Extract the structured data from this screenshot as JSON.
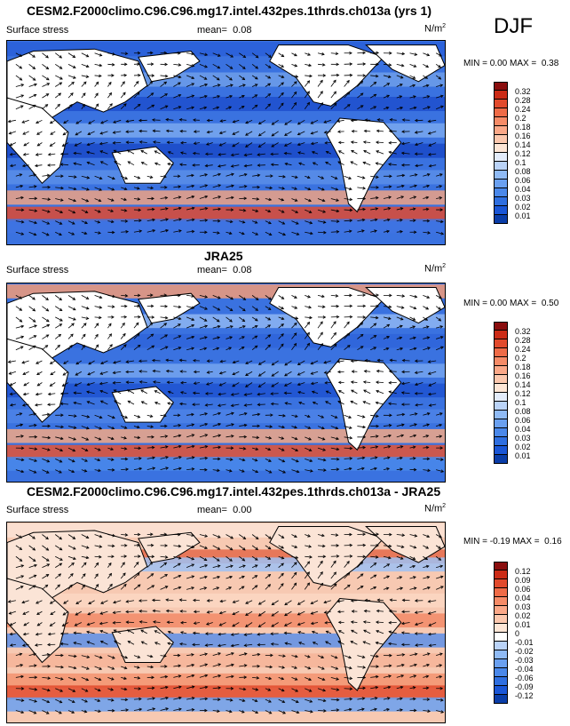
{
  "season": "DJF",
  "colors": {
    "model_scale": [
      "#08306b",
      "#0a3da8",
      "#1a56d6",
      "#2f6fe0",
      "#4a88ea",
      "#6aa0f0",
      "#8fbaf5",
      "#bad3f8",
      "#e3ecfb",
      "#fde6d6",
      "#fcc8ae",
      "#fba888",
      "#f68b67",
      "#ef6b47",
      "#e24a2c",
      "#cc2b16",
      "#8a0e0e"
    ],
    "diff_scale": [
      "#08306b",
      "#0a3da8",
      "#1a56d6",
      "#2f6fe0",
      "#4a88ea",
      "#6aa0f0",
      "#8fbaf5",
      "#bad3f8",
      "#ffffff",
      "#fde6d6",
      "#fcc8ae",
      "#fba888",
      "#f68b67",
      "#ef6b47",
      "#e24a2c",
      "#cc2b16",
      "#8a0e0e"
    ],
    "land": "#ffffff",
    "coast": "#000000"
  },
  "panels": [
    {
      "title": "CESM2.F2000climo.C96.C96.mg17.intel.432pes.1thrds.ch013a (yrs 1)",
      "left": "Surface stress",
      "mean_label": "mean=",
      "mean": "0.08",
      "units": "N/m",
      "units_sup": "2",
      "min_label": "MIN =",
      "min": "0.00",
      "max_label": "MAX =",
      "max": "0.38",
      "cb_labels": [
        "0.32",
        "0.28",
        "0.24",
        "0.2",
        "0.18",
        "0.16",
        "0.14",
        "0.12",
        "0.1",
        "0.08",
        "0.06",
        "0.04",
        "0.03",
        "0.02",
        "0.01"
      ]
    },
    {
      "title": "JRA25",
      "left": "Surface stress",
      "mean_label": "mean=",
      "mean": "0.08",
      "units": "N/m",
      "units_sup": "2",
      "min_label": "MIN =",
      "min": "0.00",
      "max_label": "MAX =",
      "max": "0.50",
      "cb_labels": [
        "0.32",
        "0.28",
        "0.24",
        "0.2",
        "0.18",
        "0.16",
        "0.14",
        "0.12",
        "0.1",
        "0.08",
        "0.06",
        "0.04",
        "0.03",
        "0.02",
        "0.01"
      ]
    },
    {
      "title": "CESM2.F2000climo.C96.C96.mg17.intel.432pes.1thrds.ch013a - JRA25",
      "left": "Surface stress",
      "mean_label": "mean=",
      "mean": "0.00",
      "units": "N/m",
      "units_sup": "2",
      "min_label": "MIN =",
      "min": "-0.19",
      "max_label": "MAX =",
      "max": "0.16",
      "cb_labels": [
        "0.12",
        "0.09",
        "0.06",
        "0.04",
        "0.03",
        "0.02",
        "0.01",
        "0",
        "-0.01",
        "-0.02",
        "-0.03",
        "-0.04",
        "-0.06",
        "-0.09",
        "-0.12"
      ]
    }
  ],
  "chart_data": [
    {
      "type": "heatmap",
      "title": "CESM2.F2000climo.C96.C96.mg17.intel.432pes.1thrds.ch013a (yrs 1)",
      "variable": "Surface stress",
      "units": "N/m2",
      "season": "DJF",
      "mean": 0.08,
      "min": 0.0,
      "max": 0.38,
      "levels": [
        0.01,
        0.02,
        0.03,
        0.04,
        0.06,
        0.08,
        0.1,
        0.12,
        0.14,
        0.16,
        0.18,
        0.2,
        0.24,
        0.28,
        0.32
      ]
    },
    {
      "type": "heatmap",
      "title": "JRA25",
      "variable": "Surface stress",
      "units": "N/m2",
      "season": "DJF",
      "mean": 0.08,
      "min": 0.0,
      "max": 0.5,
      "levels": [
        0.01,
        0.02,
        0.03,
        0.04,
        0.06,
        0.08,
        0.1,
        0.12,
        0.14,
        0.16,
        0.18,
        0.2,
        0.24,
        0.28,
        0.32
      ]
    },
    {
      "type": "heatmap",
      "title": "CESM2.F2000climo.C96.C96.mg17.intel.432pes.1thrds.ch013a - JRA25",
      "variable": "Surface stress",
      "units": "N/m2",
      "season": "DJF",
      "mean": 0.0,
      "min": -0.19,
      "max": 0.16,
      "levels": [
        -0.12,
        -0.09,
        -0.06,
        -0.04,
        -0.03,
        -0.02,
        -0.01,
        0,
        0.01,
        0.02,
        0.03,
        0.04,
        0.06,
        0.09,
        0.12
      ]
    }
  ]
}
